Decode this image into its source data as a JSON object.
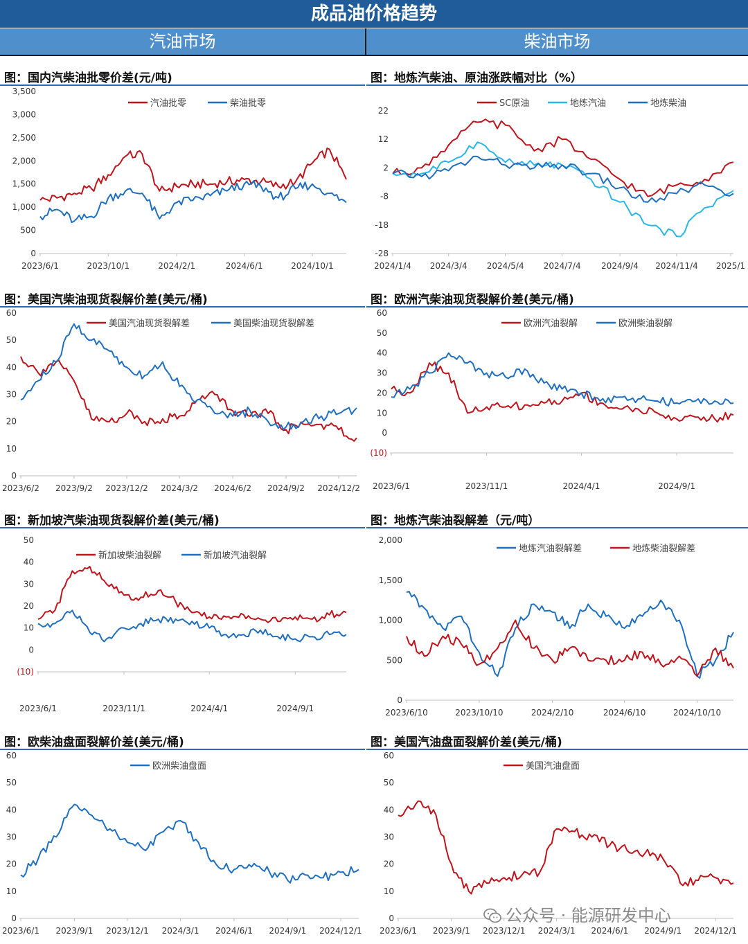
{
  "header": {
    "title": "成品油价格趋势",
    "left_section": "汽油市场",
    "right_section": "柴油市场"
  },
  "watermark": "公众号 · 能源研发中心",
  "colors": {
    "red": "#c0141c",
    "blue": "#1f6fc0",
    "cyan": "#29b6e8",
    "title_bar": "#1f5c99",
    "sub_bar": "#4f8fcc"
  },
  "chart_data": [
    {
      "id": "c1",
      "type": "line",
      "title": "图：国内汽柴油批零价差(元/吨)",
      "ylim": [
        0,
        3500
      ],
      "yticks": [
        "0",
        "500",
        "1,000",
        "1,500",
        "2,000",
        "2,500",
        "3,000",
        "3,500"
      ],
      "xticks": [
        "2023/6/1",
        "2023/10/1",
        "2024/2/1",
        "2024/6/1",
        "2024/10/1"
      ],
      "x": [
        "2023/6/1",
        "2023/7/1",
        "2023/8/1",
        "2023/9/1",
        "2023/10/1",
        "2023/11/1",
        "2023/12/1",
        "2024/1/1",
        "2024/2/1",
        "2024/3/1",
        "2024/4/1",
        "2024/5/1",
        "2024/6/1",
        "2024/7/1",
        "2024/8/1",
        "2024/9/1",
        "2024/10/1",
        "2024/11/1",
        "2024/12/1"
      ],
      "legend_placement": "top",
      "series": [
        {
          "name": "汽油批零",
          "color": "#c0141c",
          "values": [
            1150,
            1200,
            1300,
            1400,
            1700,
            2100,
            2150,
            1350,
            1450,
            1500,
            1500,
            1550,
            1600,
            1550,
            1450,
            1550,
            1950,
            2250,
            1600
          ]
        },
        {
          "name": "柴油批零",
          "color": "#1f6fc0",
          "values": [
            800,
            950,
            700,
            800,
            1200,
            1350,
            1300,
            750,
            1100,
            1150,
            1250,
            1350,
            1500,
            1450,
            1200,
            1400,
            1500,
            1300,
            1100
          ]
        }
      ]
    },
    {
      "id": "c2",
      "type": "line",
      "title": "图：地炼汽柴油、原油涨跌幅对比（%）",
      "ylim": [
        -28,
        22
      ],
      "yticks": [
        "-28",
        "-18",
        "-8",
        "2",
        "12",
        "22"
      ],
      "xticks": [
        "2024/1/4",
        "2024/3/4",
        "2024/5/4",
        "2024/7/4",
        "2024/9/4",
        "2024/11/4",
        "2025/1"
      ],
      "x": [
        "2024/1/4",
        "2024/2/4",
        "2024/3/4",
        "2024/4/4",
        "2024/5/4",
        "2024/6/4",
        "2024/7/4",
        "2024/8/4",
        "2024/9/4",
        "2024/10/4",
        "2024/11/4",
        "2024/12/4",
        "2025/1/4"
      ],
      "legend_placement": "top",
      "series": [
        {
          "name": "SC原油",
          "color": "#c0141c",
          "values": [
            0,
            2,
            10,
            18,
            17,
            8,
            12,
            5,
            -2,
            -8,
            -4,
            -2,
            4
          ]
        },
        {
          "name": "地炼汽油",
          "color": "#29b6e8",
          "values": [
            0,
            0,
            4,
            11,
            4,
            3,
            3,
            -2,
            -10,
            -18,
            -22,
            -12,
            -6
          ]
        },
        {
          "name": "地炼柴油",
          "color": "#1f6fc0",
          "values": [
            0,
            -1,
            1,
            6,
            3,
            2,
            3,
            0,
            -5,
            -10,
            -7,
            -4,
            -7
          ]
        }
      ]
    },
    {
      "id": "c3",
      "type": "line",
      "title": "图：美国汽柴油现货裂解价差(美元/桶)",
      "ylim": [
        0,
        60
      ],
      "yticks": [
        "0",
        "10",
        "20",
        "30",
        "40",
        "50",
        "60"
      ],
      "xticks": [
        "2023/6/2",
        "2023/9/2",
        "2023/12/2",
        "2024/3/2",
        "2024/6/2",
        "2024/9/2",
        "2024/12/2"
      ],
      "x": [
        "2023/6/2",
        "2023/7/2",
        "2023/8/2",
        "2023/9/2",
        "2023/10/2",
        "2023/11/2",
        "2023/12/2",
        "2024/1/2",
        "2024/2/2",
        "2024/3/2",
        "2024/4/2",
        "2024/5/2",
        "2024/6/2",
        "2024/7/2",
        "2024/8/2",
        "2024/9/2",
        "2024/10/2",
        "2024/11/2",
        "2024/12/2",
        "2025/1/2"
      ],
      "legend_placement": "top",
      "series": [
        {
          "name": "美国汽油现货裂解差",
          "color": "#c0141c",
          "values": [
            44,
            38,
            42,
            35,
            21,
            20,
            23,
            20,
            21,
            22,
            28,
            30,
            24,
            22,
            23,
            17,
            19,
            19,
            17,
            14
          ]
        },
        {
          "name": "美国柴油现货裂解差",
          "color": "#1f6fc0",
          "values": [
            28,
            35,
            42,
            56,
            50,
            46,
            40,
            37,
            42,
            33,
            28,
            23,
            22,
            24,
            20,
            18,
            20,
            22,
            23,
            25
          ]
        }
      ]
    },
    {
      "id": "c4",
      "type": "line",
      "title": "图：欧洲汽柴油现货裂解价差(美元/桶)",
      "ylim": [
        -10,
        60
      ],
      "yticks": [
        "(10)",
        "0",
        "10",
        "20",
        "30",
        "40",
        "50",
        "60"
      ],
      "xticks": [
        "2023/6/1",
        "2023/11/1",
        "2024/4/1",
        "2024/9/1"
      ],
      "x": [
        "2023/6/1",
        "2023/7/1",
        "2023/8/1",
        "2023/9/1",
        "2023/10/1",
        "2023/11/1",
        "2023/12/1",
        "2024/1/1",
        "2024/2/1",
        "2024/3/1",
        "2024/4/1",
        "2024/5/1",
        "2024/6/1",
        "2024/7/1",
        "2024/8/1",
        "2024/9/1",
        "2024/10/1",
        "2024/11/1",
        "2024/12/1"
      ],
      "legend_placement": "top",
      "series": [
        {
          "name": "欧洲汽油裂解",
          "color": "#c0141c",
          "values": [
            22,
            20,
            35,
            30,
            10,
            13,
            13,
            14,
            15,
            16,
            20,
            15,
            12,
            12,
            10,
            7,
            8,
            7,
            9
          ]
        },
        {
          "name": "欧洲柴油裂解",
          "color": "#1f6fc0",
          "values": [
            18,
            22,
            30,
            40,
            35,
            30,
            28,
            32,
            25,
            22,
            20,
            16,
            18,
            17,
            16,
            15,
            16,
            16,
            15
          ]
        }
      ]
    },
    {
      "id": "c5",
      "type": "line",
      "title": "图：新加坡汽柴油现货裂解价差(美元/桶)",
      "ylim": [
        -10,
        50
      ],
      "yticks": [
        "(10)",
        "0",
        "10",
        "20",
        "30",
        "40",
        "50"
      ],
      "xticks": [
        "2023/6/1",
        "2023/11/1",
        "2024/4/1",
        "2024/9/1"
      ],
      "x": [
        "2023/6/1",
        "2023/7/1",
        "2023/8/1",
        "2023/9/1",
        "2023/10/1",
        "2023/11/1",
        "2023/12/1",
        "2024/1/1",
        "2024/2/1",
        "2024/3/1",
        "2024/4/1",
        "2024/5/1",
        "2024/6/1",
        "2024/7/1",
        "2024/8/1",
        "2024/9/1",
        "2024/10/1",
        "2024/11/1",
        "2024/12/1"
      ],
      "legend_placement": "top",
      "series": [
        {
          "name": "新加坡柴油裂解",
          "color": "#c0141c",
          "values": [
            14,
            18,
            36,
            38,
            30,
            25,
            24,
            27,
            22,
            17,
            15,
            15,
            16,
            14,
            13,
            15,
            14,
            16,
            17
          ]
        },
        {
          "name": "新加坡汽油裂解",
          "color": "#1f6fc0",
          "values": [
            12,
            12,
            18,
            8,
            5,
            10,
            12,
            14,
            14,
            13,
            10,
            7,
            7,
            9,
            6,
            5,
            6,
            7,
            7
          ]
        }
      ]
    },
    {
      "id": "c6",
      "type": "line",
      "title": "图：地炼汽柴油裂解差（元/吨）",
      "ylim": [
        0,
        2000
      ],
      "yticks": [
        "0",
        "500",
        "1,000",
        "1,500",
        "2,000"
      ],
      "xticks": [
        "2023/6/10",
        "2023/10/10",
        "2024/2/10",
        "2024/6/10",
        "2024/10/10"
      ],
      "x": [
        "2023/6/10",
        "2023/7/10",
        "2023/8/10",
        "2023/9/10",
        "2023/10/10",
        "2023/11/10",
        "2023/12/10",
        "2024/1/10",
        "2024/2/10",
        "2024/3/10",
        "2024/4/10",
        "2024/5/10",
        "2024/6/10",
        "2024/7/10",
        "2024/8/10",
        "2024/9/10",
        "2024/10/10",
        "2024/11/10",
        "2024/12/10"
      ],
      "legend_placement": "top",
      "series": [
        {
          "name": "地炼汽油裂解差",
          "color": "#1f6fc0",
          "values": [
            1350,
            1150,
            900,
            1050,
            600,
            300,
            900,
            1200,
            1100,
            900,
            1200,
            1050,
            900,
            1050,
            1250,
            1000,
            300,
            500,
            850
          ]
        },
        {
          "name": "地炼柴油裂解差",
          "color": "#c0141c",
          "values": [
            800,
            550,
            800,
            700,
            450,
            650,
            1000,
            650,
            500,
            650,
            500,
            500,
            500,
            600,
            450,
            550,
            300,
            650,
            400
          ]
        }
      ]
    },
    {
      "id": "c7",
      "type": "line",
      "title": "图：欧柴油盘面裂解价差(美元/桶)",
      "ylim": [
        0,
        60
      ],
      "yticks": [
        "0",
        "10",
        "20",
        "30",
        "40",
        "50",
        "60"
      ],
      "xticks": [
        "2023/6/1",
        "2023/9/1",
        "2023/12/1",
        "2024/3/1",
        "2024/6/1",
        "2024/9/1",
        "2024/12/1"
      ],
      "x": [
        "2023/6/1",
        "2023/7/1",
        "2023/8/1",
        "2023/9/1",
        "2023/10/1",
        "2023/11/1",
        "2023/12/1",
        "2024/1/1",
        "2024/2/1",
        "2024/3/1",
        "2024/4/1",
        "2024/5/1",
        "2024/6/1",
        "2024/7/1",
        "2024/8/1",
        "2024/9/1",
        "2024/10/1",
        "2024/11/1",
        "2024/12/1",
        "2025/1/1"
      ],
      "legend_placement": "top",
      "series": [
        {
          "name": "欧洲柴油盘面",
          "color": "#1f6fc0",
          "values": [
            16,
            22,
            30,
            42,
            38,
            33,
            28,
            25,
            32,
            36,
            28,
            20,
            18,
            19,
            17,
            14,
            16,
            15,
            17,
            18
          ]
        }
      ]
    },
    {
      "id": "c8",
      "type": "line",
      "title": "图：美国汽油盘面裂解价差(美元/桶)",
      "ylim": [
        0,
        60
      ],
      "yticks": [
        "0",
        "10",
        "20",
        "30",
        "40",
        "50",
        "60"
      ],
      "xticks": [
        "2023/6/1",
        "2023/9/1",
        "2023/12/1",
        "2024/3/1",
        "2024/6/1",
        "2024/9/1",
        "2024/12/1"
      ],
      "x": [
        "2023/6/1",
        "2023/7/1",
        "2023/8/1",
        "2023/9/1",
        "2023/10/1",
        "2023/11/1",
        "2023/12/1",
        "2024/1/1",
        "2024/2/1",
        "2024/3/1",
        "2024/4/1",
        "2024/5/1",
        "2024/6/1",
        "2024/7/1",
        "2024/8/1",
        "2024/9/1",
        "2024/10/1",
        "2024/11/1",
        "2024/12/1",
        "2025/1/1"
      ],
      "legend_placement": "top",
      "series": [
        {
          "name": "美国汽油盘面",
          "color": "#c0141c",
          "values": [
            38,
            42,
            40,
            20,
            10,
            13,
            15,
            16,
            17,
            33,
            32,
            30,
            27,
            25,
            24,
            22,
            13,
            14,
            15,
            13
          ]
        }
      ]
    }
  ]
}
